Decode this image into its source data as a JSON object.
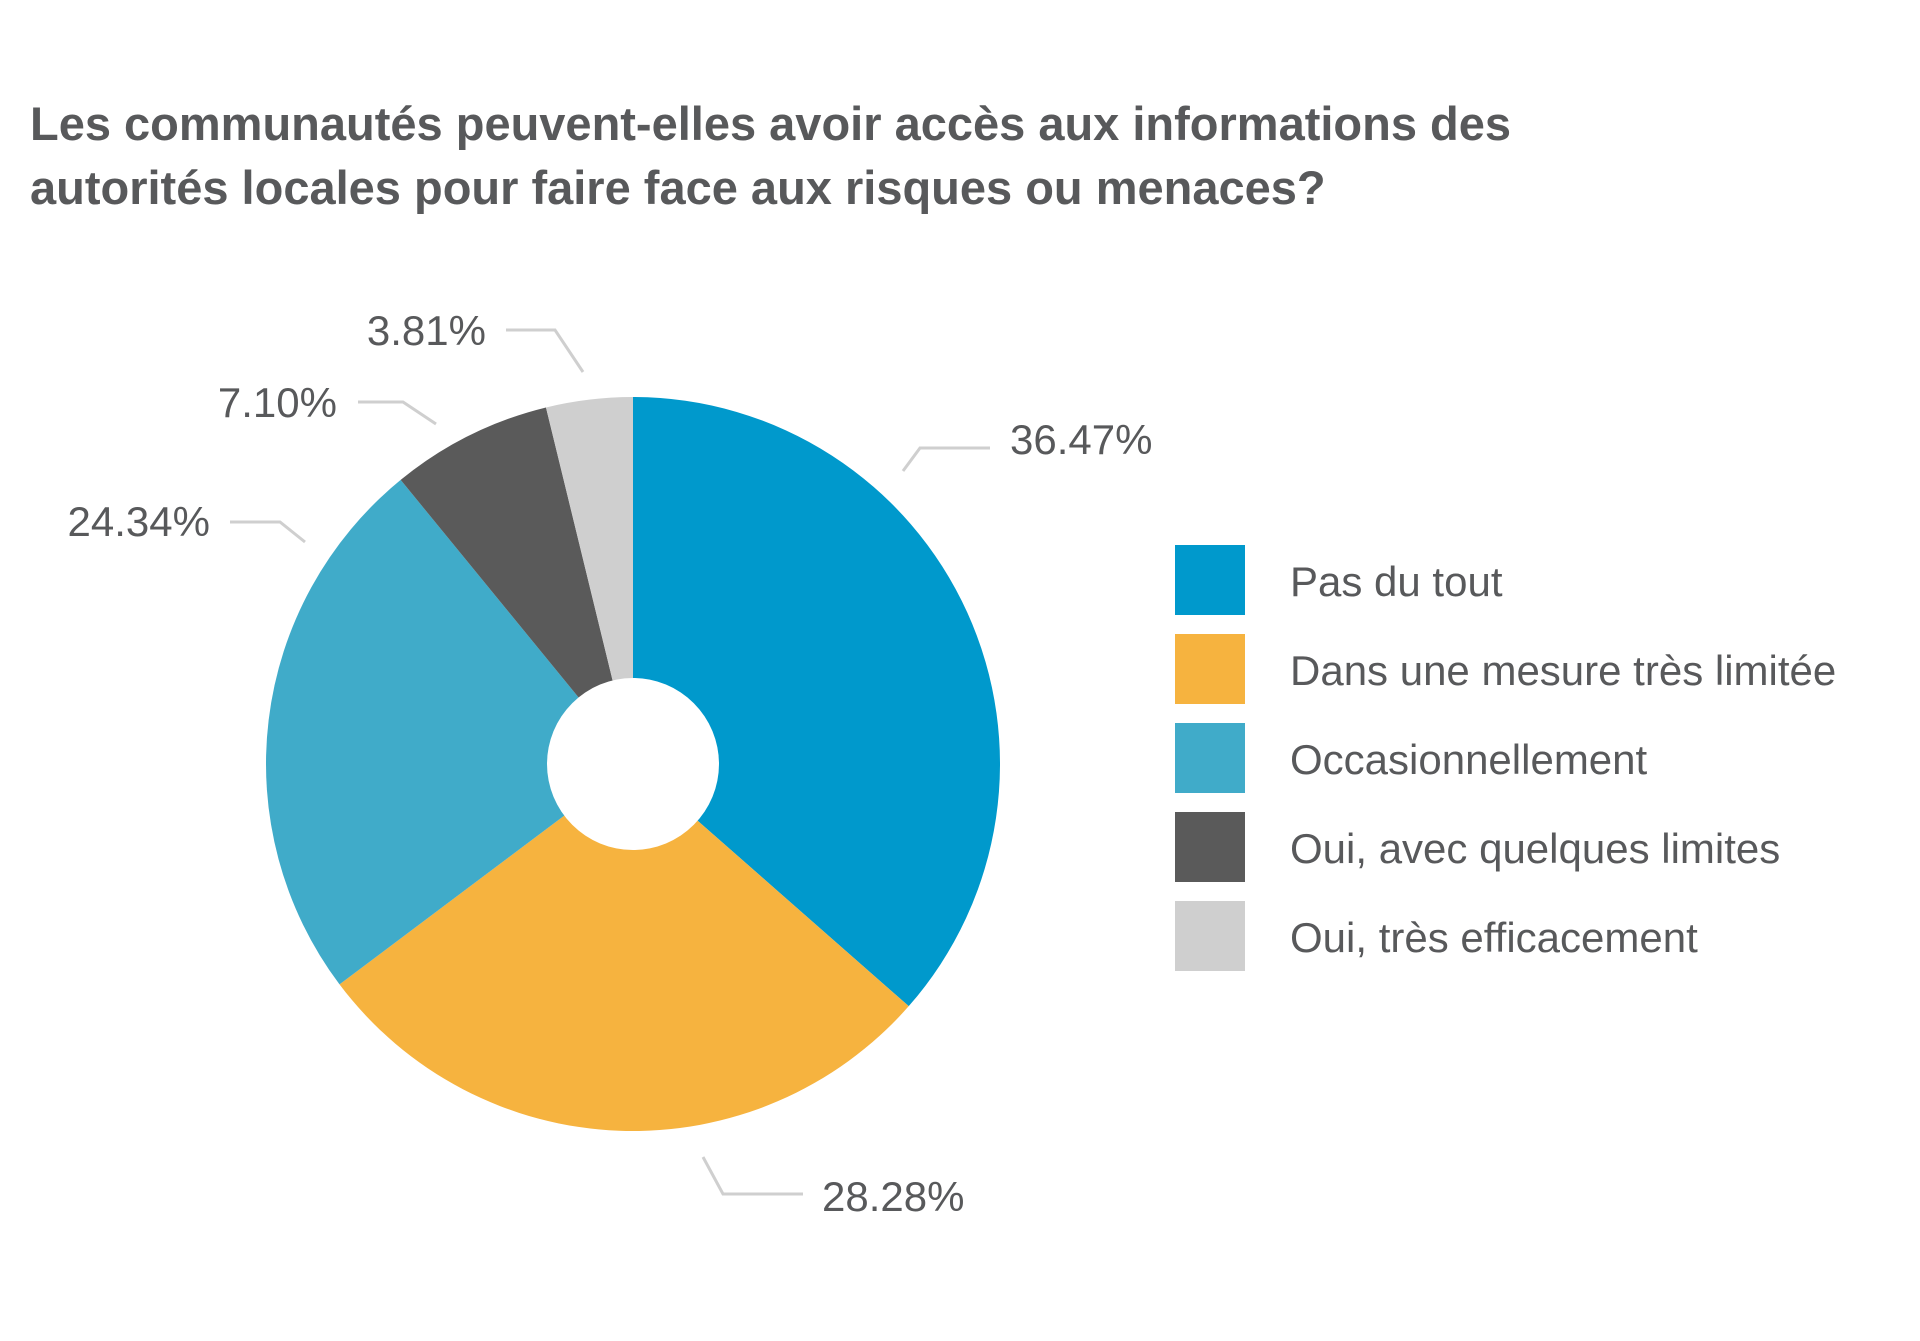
{
  "chart_data": {
    "type": "pie",
    "title": {
      "line1": "Les communautés peuvent-elles avoir accès aux informations des",
      "line2": "autorités locales pour faire face aux risques ou menaces?"
    },
    "series": [
      {
        "label": "Pas du tout",
        "value": 36.47,
        "display": "36.47%",
        "color": "#0099cc"
      },
      {
        "label": "Dans une mesure très limitée",
        "value": 28.28,
        "display": "28.28%",
        "color": "#f6b33f"
      },
      {
        "label": "Occasionnellement",
        "value": 24.34,
        "display": "24.34%",
        "color": "#40abc9"
      },
      {
        "label": "Oui, avec quelques limites",
        "value": 7.1,
        "display": "7.10%",
        "color": "#5a5a5a"
      },
      {
        "label": "Oui, très efficacement",
        "value": 3.81,
        "display": "3.81%",
        "color": "#cfcfcf"
      }
    ],
    "legend_position": "right",
    "start_angle": "top, clockwise",
    "donut_hole": true
  }
}
